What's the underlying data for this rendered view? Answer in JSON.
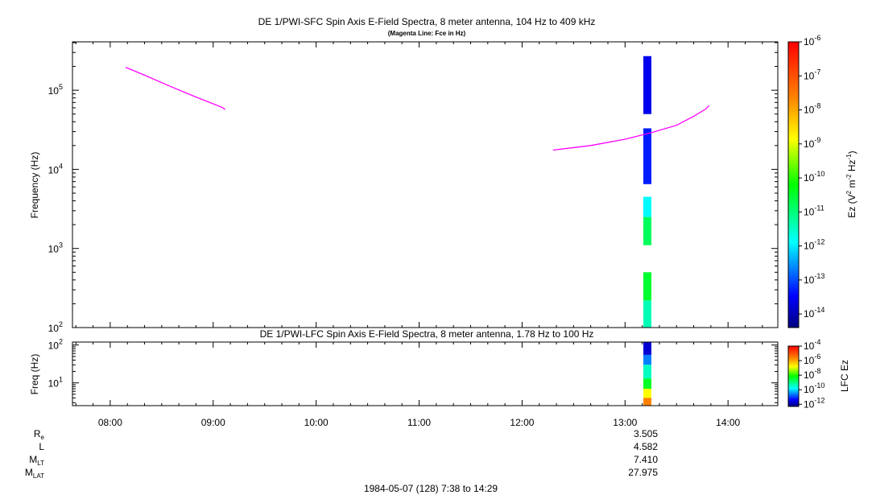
{
  "chart_data": [
    {
      "type": "heatmap",
      "title": "DE 1/PWI-SFC  Spin Axis E-Field Spectra, 8 meter antenna, 104 Hz to 409 kHz",
      "subtitle": "(Magenta Line: Fce in Hz)",
      "ylabel": "Frequency (Hz)",
      "y_scale": "log",
      "ylim": [
        100,
        409000
      ],
      "y_ticks": [
        {
          "base": "10",
          "exp": "2",
          "value": 100
        },
        {
          "base": "10",
          "exp": "3",
          "value": 1000
        },
        {
          "base": "10",
          "exp": "4",
          "value": 10000
        },
        {
          "base": "10",
          "exp": "5",
          "value": 100000
        }
      ],
      "colorbar": {
        "label": "Ez (V² m⁻² Hz⁻¹)",
        "label_parts": {
          "a": "Ez (V",
          "sup1": "2",
          "b": " m",
          "sup2": "-2",
          "c": " Hz",
          "sup3": "-1",
          "d": ")"
        },
        "scale": "log",
        "range": [
          -14.4,
          -6
        ],
        "ticks": [
          {
            "base": "10",
            "exp": "-6",
            "value": -6
          },
          {
            "base": "10",
            "exp": "-7",
            "value": -7
          },
          {
            "base": "10",
            "exp": "-8",
            "value": -8
          },
          {
            "base": "10",
            "exp": "-9",
            "value": -9
          },
          {
            "base": "10",
            "exp": "-10",
            "value": -10
          },
          {
            "base": "10",
            "exp": "-11",
            "value": -11
          },
          {
            "base": "10",
            "exp": "-12",
            "value": -12
          },
          {
            "base": "10",
            "exp": "-13",
            "value": -13
          },
          {
            "base": "10",
            "exp": "-14",
            "value": -14
          }
        ]
      },
      "fce_line": {
        "color": "#ff00ff",
        "segments": [
          [
            [
              "08:09",
              195000
            ],
            [
              "08:20",
              155000
            ],
            [
              "08:35",
              112000
            ],
            [
              "08:50",
              82000
            ],
            [
              "09:05",
              61000
            ],
            [
              "09:07",
              57000
            ]
          ],
          [
            [
              "12:18",
              17500
            ],
            [
              "12:40",
              20000
            ],
            [
              "13:00",
              24000
            ],
            [
              "13:15",
              29000
            ],
            [
              "13:30",
              36000
            ],
            [
              "13:40",
              47000
            ],
            [
              "13:47",
              58000
            ],
            [
              "13:49",
              64000
            ]
          ]
        ]
      },
      "spectra_blocks": [
        {
          "time": "13:13",
          "f_low": 50000,
          "f_high": 270000,
          "log_ez": -13.6
        },
        {
          "time": "13:13",
          "f_low": 6500,
          "f_high": 33000,
          "log_ez": -13.3
        },
        {
          "time": "13:13",
          "f_low": 2500,
          "f_high": 4500,
          "log_ez": -11.9
        },
        {
          "time": "13:13",
          "f_low": 1100,
          "f_high": 2500,
          "log_ez": -10.8
        },
        {
          "time": "13:13",
          "f_low": 220,
          "f_high": 500,
          "log_ez": -10.5
        },
        {
          "time": "13:13",
          "f_low": 100,
          "f_high": 220,
          "log_ez": -11.4
        }
      ]
    },
    {
      "type": "heatmap",
      "title": "DE 1/PWI-LFC  Spin Axis E-Field Spectra, 8 meter antenna, 1.78 Hz to 100 Hz",
      "ylabel": "Freq (Hz)",
      "y_scale": "log",
      "ylim": [
        2.5,
        120
      ],
      "y_ticks": [
        {
          "base": "10",
          "exp": "1",
          "value": 10
        },
        {
          "base": "10",
          "exp": "2",
          "value": 100
        }
      ],
      "colorbar": {
        "label": "LFC Ez",
        "scale": "log",
        "range": [
          -12.3,
          -4
        ],
        "ticks": [
          {
            "base": "10",
            "exp": "-4",
            "value": -4
          },
          {
            "base": "10",
            "exp": "-6",
            "value": -6
          },
          {
            "base": "10",
            "exp": "-8",
            "value": -8
          },
          {
            "base": "10",
            "exp": "-10",
            "value": -10
          },
          {
            "base": "10",
            "exp": "-12",
            "value": -12
          }
        ]
      },
      "spectra_blocks": [
        {
          "time": "13:13",
          "f_low": 55,
          "f_high": 120,
          "log_ez": -11.7
        },
        {
          "time": "13:13",
          "f_low": 30,
          "f_high": 55,
          "log_ez": -10.6
        },
        {
          "time": "13:13",
          "f_low": 13,
          "f_high": 30,
          "log_ez": -9.4
        },
        {
          "time": "13:13",
          "f_low": 7,
          "f_high": 13,
          "log_ez": -8.4
        },
        {
          "time": "13:13",
          "f_low": 4,
          "f_high": 7,
          "log_ez": -6.8
        },
        {
          "time": "13:13",
          "f_low": 2.5,
          "f_high": 4,
          "log_ez": -5.6
        }
      ]
    }
  ],
  "time_axis": {
    "range": [
      "07:38",
      "14:29"
    ],
    "ticks": [
      "08:00",
      "09:00",
      "10:00",
      "11:00",
      "12:00",
      "13:00",
      "14:00"
    ]
  },
  "ephemeris": {
    "labels": [
      {
        "main": "R",
        "sub": "e"
      },
      {
        "main": "L",
        "sub": ""
      },
      {
        "main": "M",
        "sub": "LT"
      },
      {
        "main": "M",
        "sub": "LAT"
      }
    ],
    "values_time": "13:13",
    "values": [
      "3.505",
      "4.582",
      "7.410",
      "27.975"
    ]
  },
  "footer": "1984-05-07 (128) 7:38 to 14:29"
}
